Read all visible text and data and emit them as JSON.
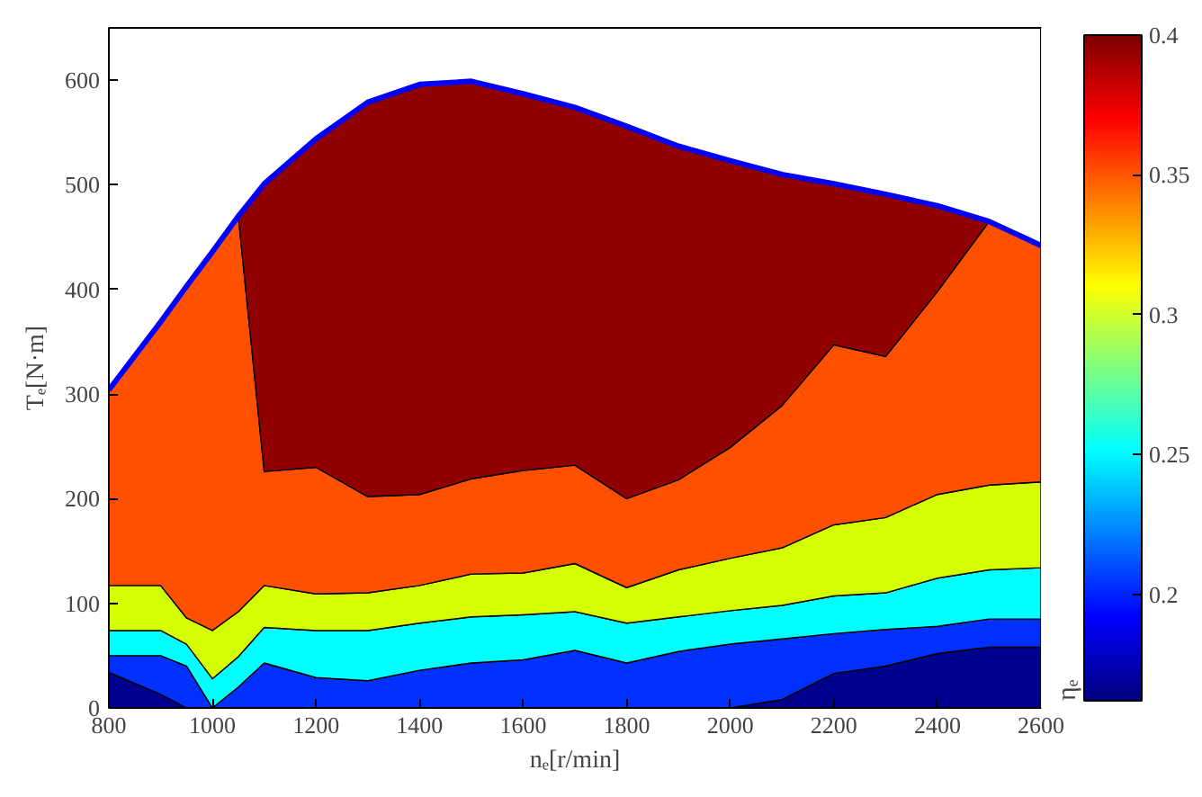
{
  "chart_data": {
    "type": "area",
    "stacked": true,
    "xlabel": "nₑ[r/min]",
    "ylabel": "Tₑ[N·m]",
    "clabel": "ηₑ",
    "x": [
      800,
      900,
      950,
      1000,
      1050,
      1100,
      1200,
      1300,
      1400,
      1500,
      1600,
      1700,
      1800,
      1900,
      2000,
      2100,
      2200,
      2300,
      2400,
      2500,
      2600
    ],
    "series": [
      {
        "color": "#00008f",
        "values": [
          34,
          13,
          0,
          0,
          0,
          0,
          0,
          0,
          0,
          0,
          0,
          0,
          0,
          0,
          0,
          8,
          33,
          40,
          52,
          58,
          58
        ]
      },
      {
        "color": "#0030ff",
        "values": [
          16,
          37,
          40,
          0,
          20,
          43,
          29,
          26,
          36,
          43,
          46,
          55,
          43,
          54,
          61,
          58,
          38,
          35,
          26,
          27,
          27
        ]
      },
      {
        "color": "#00ffff",
        "values": [
          24,
          24,
          21,
          28,
          29,
          34,
          45,
          48,
          45,
          44,
          43,
          37,
          38,
          33,
          32,
          32,
          36,
          35,
          46,
          47,
          49
        ]
      },
      {
        "color": "#d4ff00",
        "values": [
          43,
          43,
          25,
          46,
          43,
          40,
          35,
          36,
          36,
          41,
          40,
          46,
          34,
          45,
          50,
          55,
          68,
          72,
          80,
          81,
          82
        ]
      },
      {
        "color": "#ff5000",
        "values": [
          187,
          252,
          317,
          362,
          378,
          109,
          121,
          92,
          87,
          91,
          98,
          94,
          85,
          86,
          106,
          136,
          172,
          154,
          194,
          252,
          226
        ]
      },
      {
        "color": "#900000",
        "values": [
          null,
          null,
          null,
          null,
          0,
          275,
          314,
          377,
          392,
          380,
          360,
          342,
          356,
          319,
          274,
          221,
          154,
          155,
          82,
          0,
          null
        ]
      },
      {
        "type": "line",
        "color": "#0000ff",
        "values": [
          304,
          369,
          403,
          436,
          470,
          501,
          544,
          579,
          596,
          599,
          587,
          574,
          556,
          537,
          523,
          510,
          501,
          491,
          480,
          465,
          442
        ]
      }
    ],
    "xlim": [
      800,
      2600
    ],
    "xticks": [
      800,
      1000,
      1200,
      1400,
      1600,
      1800,
      2000,
      2200,
      2400,
      2600
    ],
    "ylim": [
      0,
      650
    ],
    "yticks": [
      0,
      100,
      200,
      300,
      400,
      500,
      600
    ],
    "clim": [
      0.162,
      0.4
    ],
    "cticks": [
      0.2,
      0.25,
      0.3,
      0.35,
      0.4
    ],
    "grid": false
  }
}
